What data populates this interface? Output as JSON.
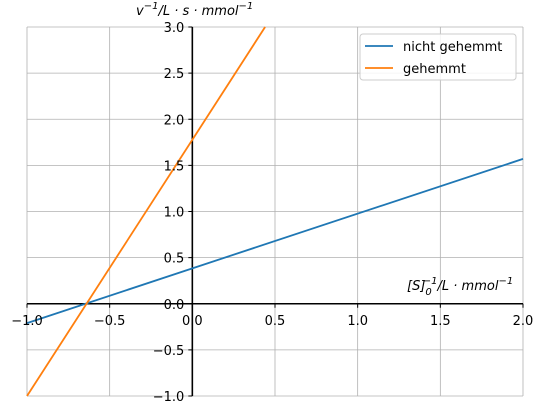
{
  "chart_data": {
    "type": "line",
    "title": "",
    "xlabel_base": "[S]",
    "xlabel_sub": "0",
    "xlabel_sup": "−1",
    "xlabel_rest": "/L · mmol",
    "xlabel_unit_sup": "−1",
    "ylabel_base": "v",
    "ylabel_sup": "−1",
    "ylabel_rest": "/L · s · mmol",
    "ylabel_unit_sup": "−1",
    "xlim": [
      -1.0,
      2.0
    ],
    "ylim": [
      -1.0,
      3.0
    ],
    "x_ticks": [
      -1.0,
      -0.5,
      0.0,
      0.5,
      1.0,
      1.5,
      2.0
    ],
    "x_tick_labels": [
      "−1.0",
      "−0.5",
      "0.0",
      "0.5",
      "1.0",
      "1.5",
      "2.0"
    ],
    "y_ticks": [
      -1.0,
      -0.5,
      0.0,
      0.5,
      1.0,
      1.5,
      2.0,
      2.5,
      3.0
    ],
    "y_tick_labels": [
      "−1.0",
      "−0.5",
      "0.0",
      "0.5",
      "1.0",
      "1.5",
      "2.0",
      "2.5",
      "3.0"
    ],
    "grid": true,
    "legend_position": "top-right",
    "series": [
      {
        "name": "nicht gehemmt",
        "color": "#1f77b4",
        "x": [
          -1.0,
          2.0
        ],
        "y": [
          -0.21,
          1.57
        ]
      },
      {
        "name": "gehemmt",
        "color": "#ff7f0e",
        "x": [
          -1.0,
          0.44
        ],
        "y": [
          -1.0,
          3.0
        ]
      }
    ]
  }
}
